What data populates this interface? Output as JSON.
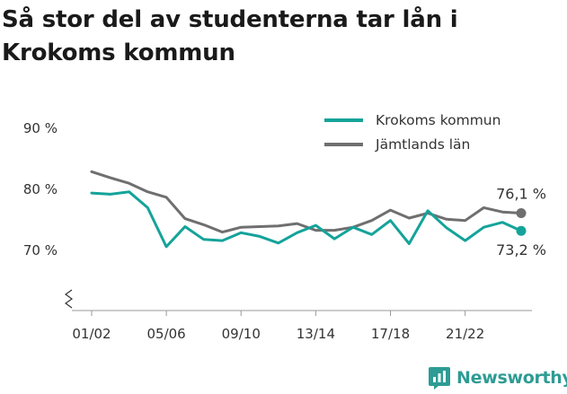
{
  "title": "Så stor del av studenterna tar lån i Krokoms kommun",
  "brand": {
    "name": "Newsworthy",
    "icon": "newsworthy-logo-icon"
  },
  "colors": {
    "krokom": "#14a39a",
    "jamtland": "#6f6f6f",
    "axis": "#999999",
    "text": "#333333"
  },
  "chart_data": {
    "type": "line",
    "ylim": [
      60,
      90
    ],
    "yticks": [
      70,
      80,
      90
    ],
    "ytick_labels": [
      "70 %",
      "80 %",
      "90 %"
    ],
    "y_axis_break": true,
    "x": [
      "01/02",
      "02/03",
      "03/04",
      "04/05",
      "05/06",
      "06/07",
      "07/08",
      "08/09",
      "09/10",
      "10/11",
      "11/12",
      "12/13",
      "13/14",
      "14/15",
      "15/16",
      "16/17",
      "17/18",
      "18/19",
      "19/20",
      "20/21",
      "21/22",
      "22/23",
      "23/24",
      "24/25"
    ],
    "xtick_labels": [
      "01/02",
      "05/06",
      "09/10",
      "13/14",
      "17/18",
      "21/22"
    ],
    "grid": false,
    "legend_position": "top-right",
    "series": [
      {
        "name": "Krokoms kommun",
        "color": "#14a39a",
        "values": [
          79.4,
          79.2,
          79.6,
          77.0,
          70.6,
          73.9,
          71.8,
          71.6,
          72.9,
          72.3,
          71.2,
          72.9,
          74.1,
          71.9,
          73.8,
          72.6,
          74.9,
          71.1,
          76.5,
          73.7,
          71.6,
          73.8,
          74.6,
          73.2
        ],
        "end_label": "73,2 %"
      },
      {
        "name": "Jämtlands län",
        "color": "#6f6f6f",
        "values": [
          82.9,
          81.9,
          81.0,
          79.6,
          78.7,
          75.2,
          74.2,
          73.0,
          73.8,
          73.9,
          74.0,
          74.4,
          73.3,
          73.3,
          73.8,
          74.9,
          76.6,
          75.3,
          76.1,
          75.1,
          74.9,
          77.0,
          76.3,
          76.1
        ],
        "end_label": "76,1 %"
      }
    ]
  }
}
